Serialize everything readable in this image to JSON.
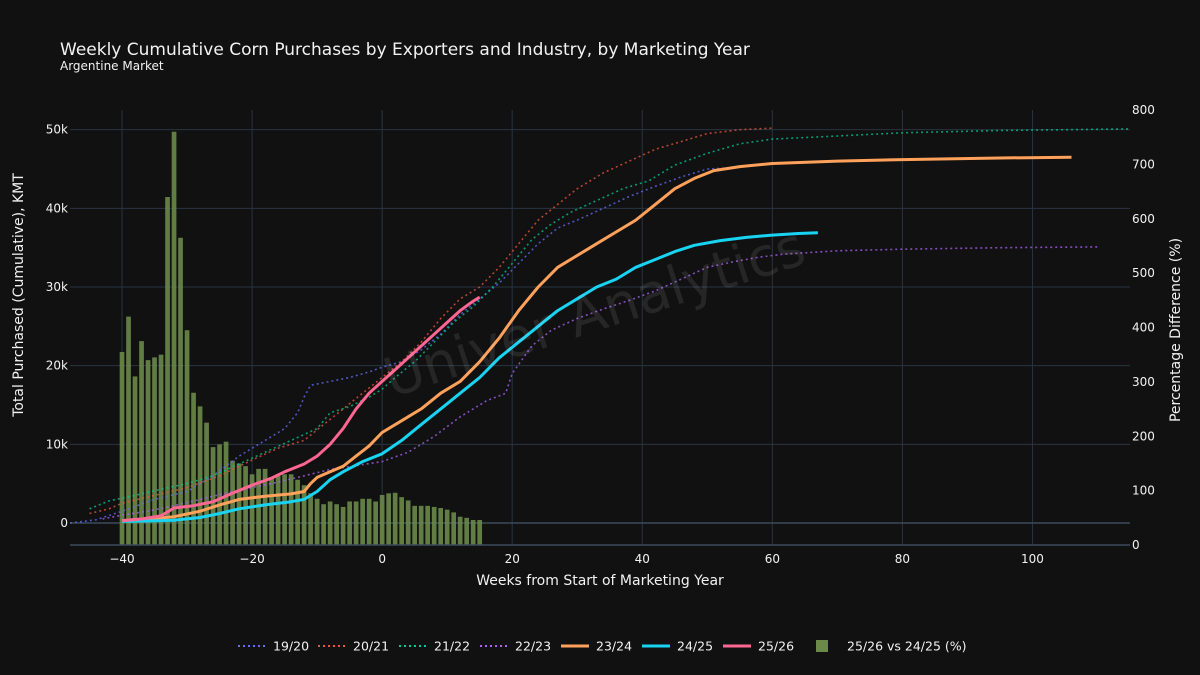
{
  "chart_data": {
    "type": "line",
    "title": "Weekly Cumulative Corn Purchases by Exporters and Industry, by Marketing Year",
    "subtitle": "Argentine Market",
    "watermark": "Univer Analytics",
    "xlabel": "Weeks from Start of Marketing Year",
    "ylabel": "Total Purchased (Cumulative), KMT",
    "y2label": "Percentage Difference (%)",
    "xlim": [
      -48,
      115
    ],
    "ylim": [
      -2800,
      52500
    ],
    "y2lim": [
      0,
      800
    ],
    "x_ticks": [
      -40,
      -20,
      0,
      20,
      40,
      60,
      80,
      100
    ],
    "x_tick_labels": [
      "−40",
      "−20",
      "0",
      "20",
      "40",
      "60",
      "80",
      "100"
    ],
    "y_ticks": [
      0,
      10000,
      20000,
      30000,
      40000,
      50000
    ],
    "y_tick_labels": [
      "0",
      "10k",
      "20k",
      "30k",
      "40k",
      "50k"
    ],
    "y2_ticks": [
      0,
      100,
      200,
      300,
      400,
      500,
      600,
      700,
      800
    ],
    "y2_tick_labels": [
      "0",
      "100",
      "200",
      "300",
      "400",
      "500",
      "600",
      "700",
      "800"
    ],
    "grid": true,
    "legend_position": "bottom",
    "series": [
      {
        "name": "19/20",
        "style": "dotted",
        "color": "#636efa",
        "points": [
          [
            -48,
            0
          ],
          [
            -44,
            400
          ],
          [
            -40,
            1500
          ],
          [
            -35,
            3000
          ],
          [
            -30,
            4000
          ],
          [
            -26,
            6000
          ],
          [
            -22,
            8500
          ],
          [
            -18,
            10500
          ],
          [
            -15,
            12000
          ],
          [
            -13,
            14000
          ],
          [
            -12,
            16000
          ],
          [
            -11,
            17500
          ],
          [
            -8,
            18000
          ],
          [
            -5,
            18500
          ],
          [
            -2,
            19200
          ],
          [
            0,
            19800
          ],
          [
            3,
            20500
          ],
          [
            6,
            22000
          ],
          [
            9,
            24000
          ],
          [
            12,
            26500
          ],
          [
            15,
            28500
          ],
          [
            18,
            30500
          ],
          [
            21,
            33000
          ],
          [
            24,
            35500
          ],
          [
            27,
            37500
          ],
          [
            30,
            38500
          ],
          [
            34,
            40000
          ],
          [
            38,
            41500
          ],
          [
            42,
            42800
          ],
          [
            46,
            44000
          ],
          [
            50,
            45000
          ],
          [
            55,
            45200
          ]
        ]
      },
      {
        "name": "20/21",
        "style": "dotted",
        "color": "#ef553b",
        "points": [
          [
            -45,
            1200
          ],
          [
            -42,
            1800
          ],
          [
            -40,
            2500
          ],
          [
            -35,
            3500
          ],
          [
            -30,
            4500
          ],
          [
            -25,
            6000
          ],
          [
            -20,
            8000
          ],
          [
            -16,
            9500
          ],
          [
            -12,
            10500
          ],
          [
            -9,
            12500
          ],
          [
            -6,
            14500
          ],
          [
            -3,
            16500
          ],
          [
            0,
            18500
          ],
          [
            3,
            20500
          ],
          [
            6,
            23000
          ],
          [
            9,
            26000
          ],
          [
            12,
            28500
          ],
          [
            15,
            30000
          ],
          [
            18,
            32500
          ],
          [
            21,
            35500
          ],
          [
            24,
            38500
          ],
          [
            27,
            40500
          ],
          [
            30,
            42500
          ],
          [
            34,
            44500
          ],
          [
            38,
            46000
          ],
          [
            42,
            47500
          ],
          [
            46,
            48500
          ],
          [
            50,
            49500
          ],
          [
            55,
            50000
          ],
          [
            60,
            50200
          ]
        ]
      },
      {
        "name": "21/22",
        "style": "dotted",
        "color": "#00cc96",
        "points": [
          [
            -45,
            1800
          ],
          [
            -42,
            2800
          ],
          [
            -38,
            3500
          ],
          [
            -34,
            4300
          ],
          [
            -30,
            5000
          ],
          [
            -26,
            6000
          ],
          [
            -22,
            7500
          ],
          [
            -18,
            9000
          ],
          [
            -14,
            10500
          ],
          [
            -10,
            12000
          ],
          [
            -8,
            14000
          ],
          [
            -5,
            14800
          ],
          [
            -2,
            16000
          ],
          [
            0,
            17000
          ],
          [
            2,
            18500
          ],
          [
            5,
            20500
          ],
          [
            8,
            23000
          ],
          [
            11,
            25500
          ],
          [
            14,
            27500
          ],
          [
            17,
            30000
          ],
          [
            20,
            33000
          ],
          [
            23,
            36000
          ],
          [
            26,
            38000
          ],
          [
            29,
            39500
          ],
          [
            33,
            41000
          ],
          [
            37,
            42500
          ],
          [
            41,
            43500
          ],
          [
            45,
            45500
          ],
          [
            50,
            47000
          ],
          [
            55,
            48200
          ],
          [
            60,
            48800
          ],
          [
            70,
            49200
          ],
          [
            80,
            49600
          ],
          [
            95,
            49900
          ],
          [
            115,
            50100
          ]
        ]
      },
      {
        "name": "22/23",
        "style": "dotted",
        "color": "#ab63fa",
        "points": [
          [
            -43,
            500
          ],
          [
            -40,
            1000
          ],
          [
            -36,
            1500
          ],
          [
            -32,
            2200
          ],
          [
            -28,
            3000
          ],
          [
            -24,
            3800
          ],
          [
            -20,
            4500
          ],
          [
            -16,
            5200
          ],
          [
            -12,
            6000
          ],
          [
            -8,
            6800
          ],
          [
            -4,
            7300
          ],
          [
            0,
            7800
          ],
          [
            4,
            9000
          ],
          [
            8,
            11000
          ],
          [
            12,
            13500
          ],
          [
            16,
            15500
          ],
          [
            19,
            16500
          ],
          [
            20,
            19000
          ],
          [
            23,
            22500
          ],
          [
            26,
            24500
          ],
          [
            30,
            26000
          ],
          [
            34,
            27200
          ],
          [
            38,
            28300
          ],
          [
            42,
            29500
          ],
          [
            46,
            31000
          ],
          [
            50,
            32500
          ],
          [
            54,
            33200
          ],
          [
            58,
            33800
          ],
          [
            62,
            34200
          ],
          [
            70,
            34600
          ],
          [
            80,
            34800
          ],
          [
            95,
            35000
          ],
          [
            110,
            35100
          ]
        ]
      },
      {
        "name": "23/24",
        "style": "solid",
        "color": "#ffa15a",
        "points": [
          [
            -40,
            300
          ],
          [
            -36,
            500
          ],
          [
            -32,
            800
          ],
          [
            -28,
            1500
          ],
          [
            -25,
            2300
          ],
          [
            -22,
            3000
          ],
          [
            -18,
            3400
          ],
          [
            -14,
            3700
          ],
          [
            -12,
            4000
          ],
          [
            -11,
            5000
          ],
          [
            -10,
            5800
          ],
          [
            -8,
            6500
          ],
          [
            -6,
            7200
          ],
          [
            -4,
            8500
          ],
          [
            -2,
            9800
          ],
          [
            0,
            11500
          ],
          [
            3,
            13000
          ],
          [
            6,
            14500
          ],
          [
            9,
            16500
          ],
          [
            12,
            18000
          ],
          [
            15,
            20500
          ],
          [
            18,
            23500
          ],
          [
            21,
            27000
          ],
          [
            24,
            30000
          ],
          [
            27,
            32500
          ],
          [
            30,
            34000
          ],
          [
            33,
            35500
          ],
          [
            36,
            37000
          ],
          [
            39,
            38500
          ],
          [
            42,
            40500
          ],
          [
            45,
            42500
          ],
          [
            48,
            43800
          ],
          [
            51,
            44800
          ],
          [
            55,
            45300
          ],
          [
            60,
            45700
          ],
          [
            70,
            46000
          ],
          [
            80,
            46200
          ],
          [
            95,
            46400
          ],
          [
            106,
            46500
          ]
        ]
      },
      {
        "name": "24/25",
        "style": "solid",
        "color": "#19d3f3",
        "points": [
          [
            -40,
            200
          ],
          [
            -36,
            250
          ],
          [
            -32,
            350
          ],
          [
            -28,
            700
          ],
          [
            -25,
            1200
          ],
          [
            -22,
            1800
          ],
          [
            -18,
            2300
          ],
          [
            -14,
            2700
          ],
          [
            -12,
            3000
          ],
          [
            -10,
            4000
          ],
          [
            -8,
            5500
          ],
          [
            -6,
            6500
          ],
          [
            -3,
            7800
          ],
          [
            0,
            8800
          ],
          [
            3,
            10500
          ],
          [
            6,
            12500
          ],
          [
            9,
            14500
          ],
          [
            12,
            16500
          ],
          [
            15,
            18500
          ],
          [
            18,
            21000
          ],
          [
            21,
            23000
          ],
          [
            24,
            25000
          ],
          [
            27,
            27000
          ],
          [
            30,
            28500
          ],
          [
            33,
            30000
          ],
          [
            36,
            31000
          ],
          [
            39,
            32500
          ],
          [
            42,
            33500
          ],
          [
            45,
            34500
          ],
          [
            48,
            35300
          ],
          [
            52,
            35900
          ],
          [
            56,
            36300
          ],
          [
            60,
            36600
          ],
          [
            64,
            36800
          ],
          [
            67,
            36900
          ]
        ]
      },
      {
        "name": "25/26",
        "style": "solid",
        "color": "#ff6692",
        "points": [
          [
            -40,
            300
          ],
          [
            -37,
            500
          ],
          [
            -34,
            900
          ],
          [
            -32,
            1900
          ],
          [
            -29,
            2200
          ],
          [
            -26,
            2700
          ],
          [
            -23,
            3800
          ],
          [
            -20,
            4800
          ],
          [
            -17,
            5700
          ],
          [
            -15,
            6500
          ],
          [
            -12,
            7500
          ],
          [
            -10,
            8500
          ],
          [
            -8,
            10000
          ],
          [
            -6,
            12000
          ],
          [
            -4,
            14500
          ],
          [
            -2,
            16500
          ],
          [
            0,
            18000
          ],
          [
            2,
            19500
          ],
          [
            4,
            21000
          ],
          [
            6,
            22500
          ],
          [
            8,
            24000
          ],
          [
            10,
            25500
          ],
          [
            12,
            27000
          ],
          [
            14,
            28200
          ],
          [
            15,
            28700
          ]
        ]
      }
    ],
    "bars": {
      "name": "25/26 vs 24/25 (%)",
      "axis": "y2",
      "color": "#6b8a4a",
      "x": [
        -40,
        -39,
        -38,
        -37,
        -36,
        -35,
        -34,
        -33,
        -32,
        -31,
        -30,
        -29,
        -28,
        -27,
        -26,
        -25,
        -24,
        -23,
        -22,
        -21,
        -20,
        -19,
        -18,
        -17,
        -16,
        -15,
        -14,
        -13,
        -12,
        -11,
        -10,
        -9,
        -8,
        -7,
        -6,
        -5,
        -4,
        -3,
        -2,
        -1,
        0,
        1,
        2,
        3,
        4,
        5,
        6,
        7,
        8,
        9,
        10,
        11,
        12,
        13,
        14,
        15
      ],
      "values": [
        355,
        420,
        310,
        375,
        340,
        345,
        350,
        640,
        760,
        565,
        395,
        280,
        255,
        225,
        180,
        185,
        190,
        155,
        150,
        145,
        130,
        140,
        140,
        125,
        130,
        130,
        130,
        120,
        110,
        95,
        85,
        75,
        80,
        75,
        70,
        80,
        80,
        85,
        85,
        80,
        92,
        95,
        96,
        88,
        82,
        72,
        72,
        72,
        70,
        68,
        65,
        60,
        52,
        50,
        46,
        46
      ]
    }
  },
  "legend": [
    {
      "label": "19/20",
      "kind": "dotted",
      "color": "#636efa"
    },
    {
      "label": "20/21",
      "kind": "dotted",
      "color": "#ef553b"
    },
    {
      "label": "21/22",
      "kind": "dotted",
      "color": "#00cc96"
    },
    {
      "label": "22/23",
      "kind": "dotted",
      "color": "#ab63fa"
    },
    {
      "label": "23/24",
      "kind": "solid",
      "color": "#ffa15a"
    },
    {
      "label": "24/25",
      "kind": "solid",
      "color": "#19d3f3"
    },
    {
      "label": "25/26",
      "kind": "solid",
      "color": "#ff6692"
    },
    {
      "label": "25/26 vs 24/25 (%)",
      "kind": "bar",
      "color": "#6b8a4a"
    }
  ]
}
